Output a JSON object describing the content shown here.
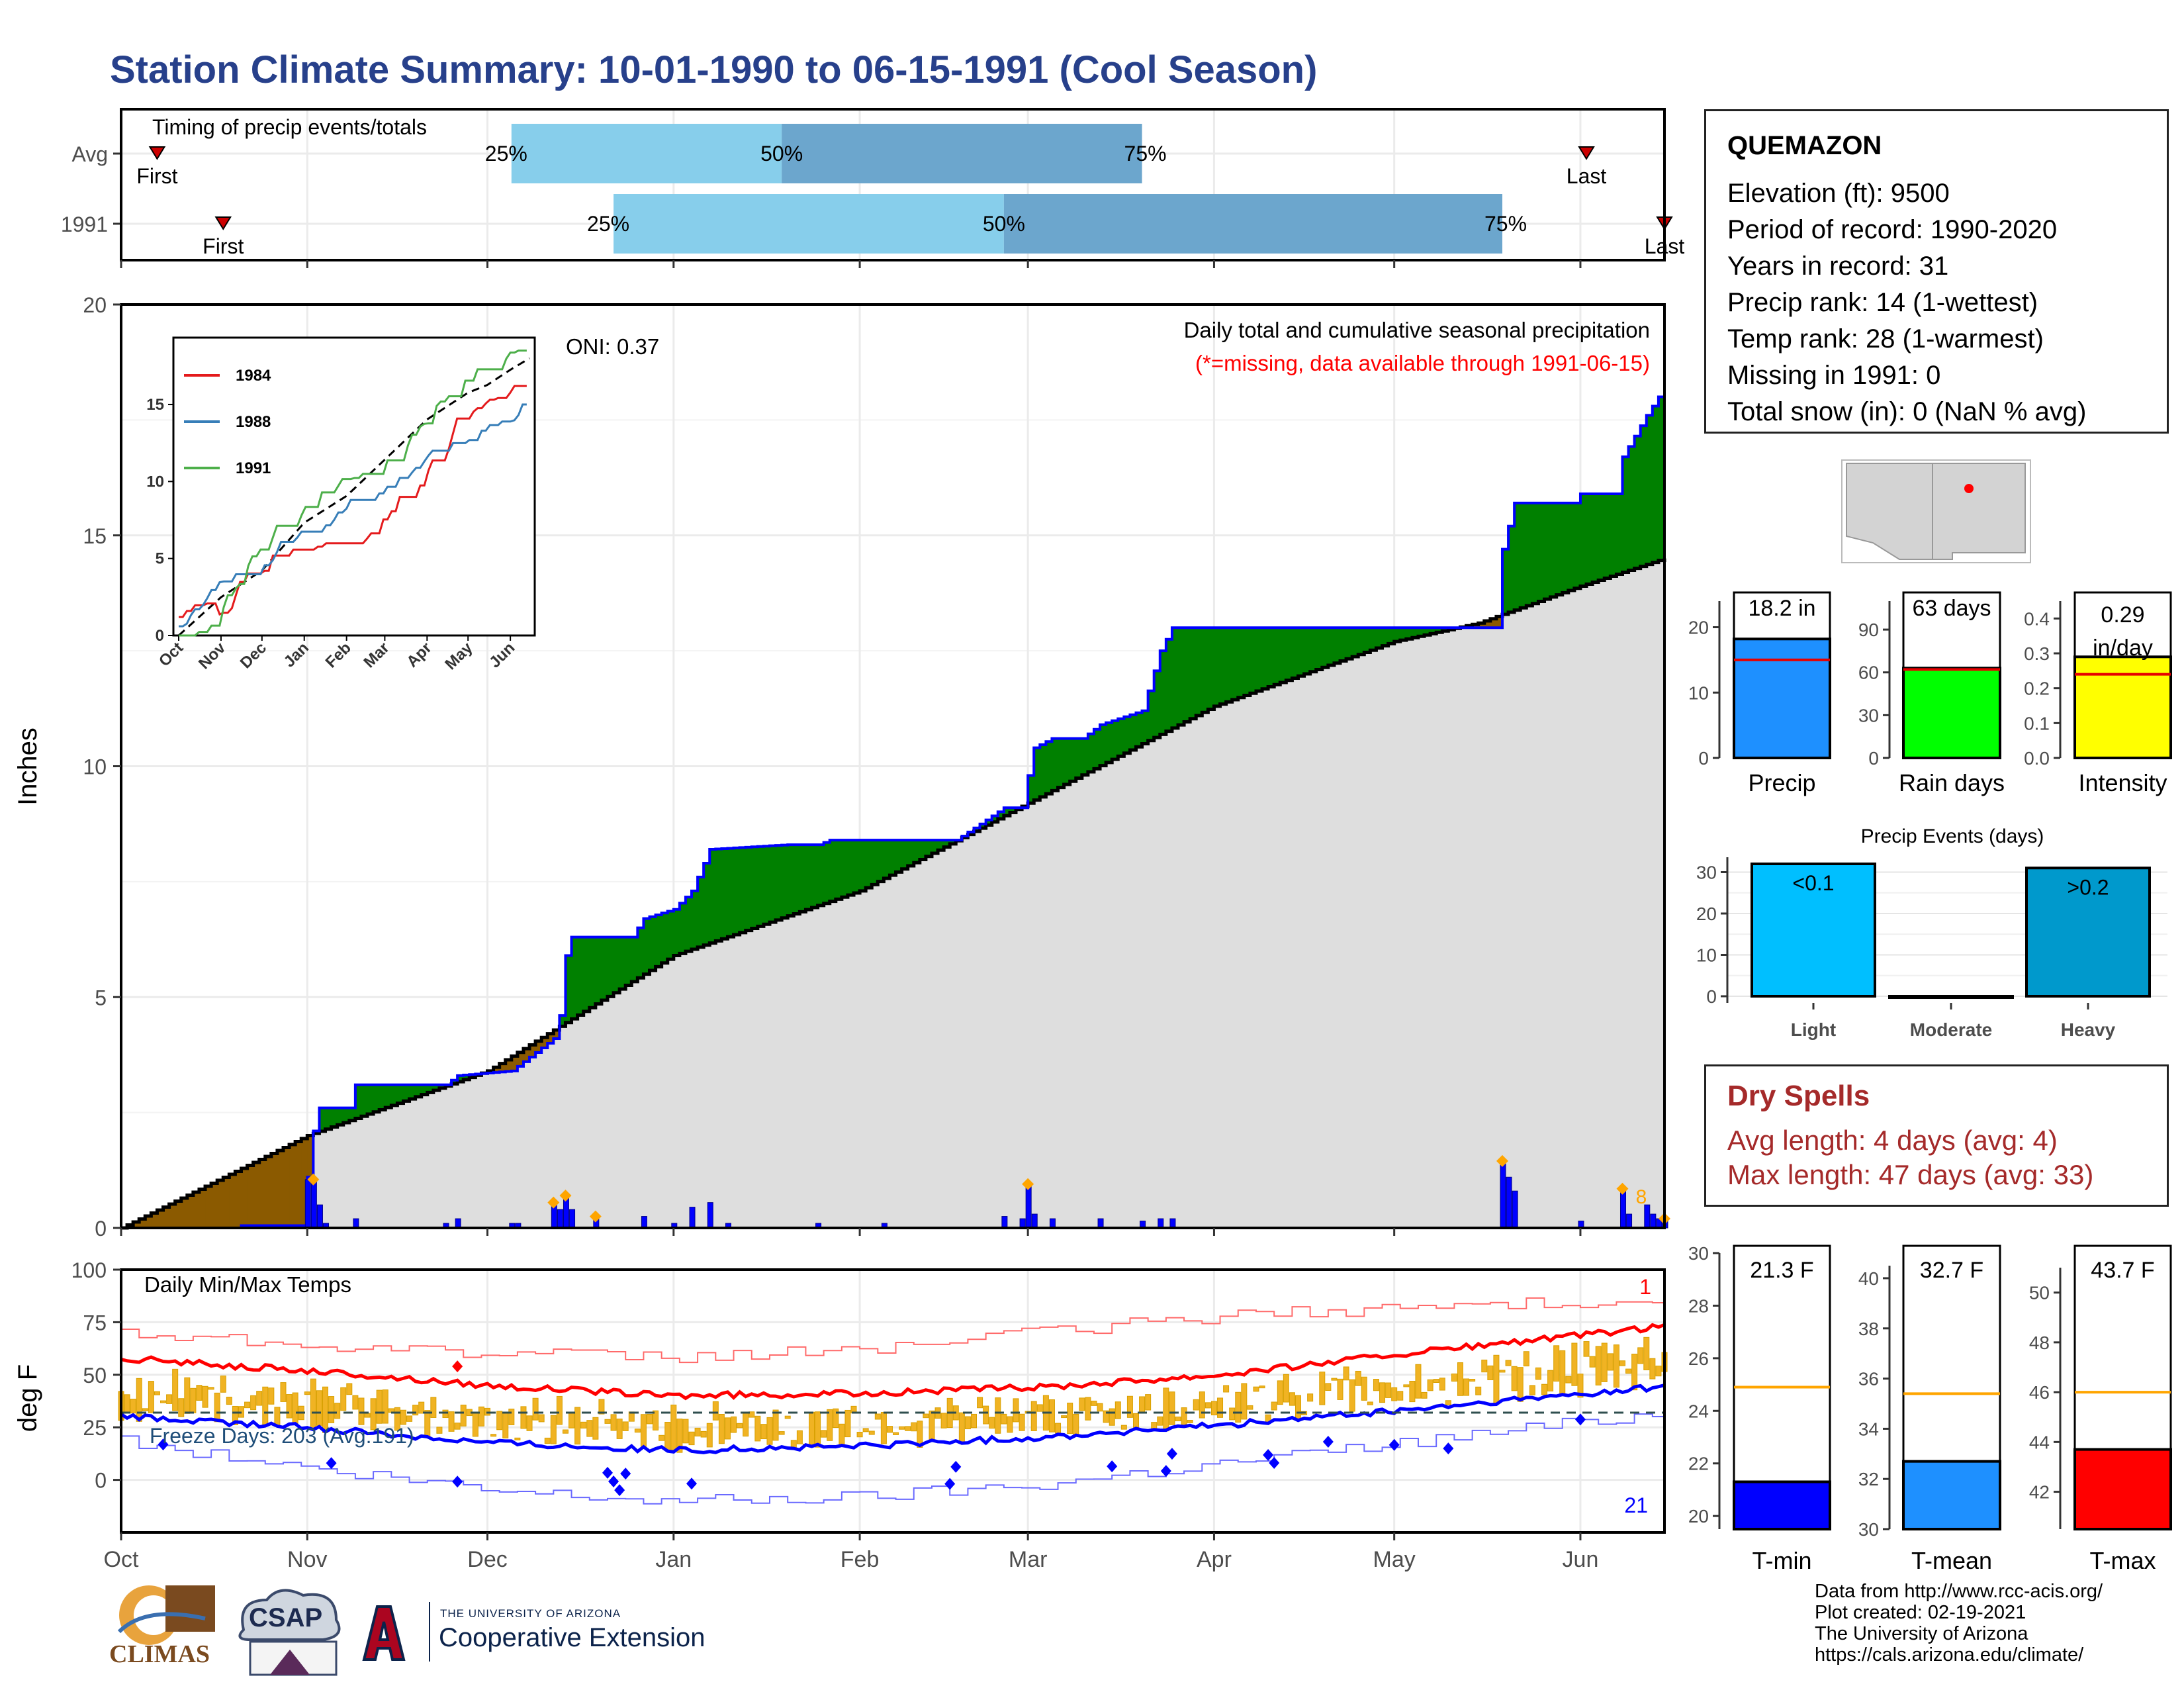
{
  "title": "Station Climate Summary: 10-01-1990 to 06-15-1991 (Cool Season)",
  "info": {
    "station": "QUEMAZON",
    "lines": [
      "Elevation (ft): 9500",
      "Period of record: 1990-2020",
      "Years in record: 31",
      "Precip rank: 14 (1-wettest)",
      "Temp rank: 28 (1-warmest)",
      "Missing in 1991: 0",
      "Total snow (in): 0 (NaN % avg)"
    ]
  },
  "dry_spells": {
    "title": "Dry Spells",
    "avg_length": "Avg length: 4 days (avg: 4)",
    "max_length": "Max length: 47 days (avg: 33)"
  },
  "credits": [
    "Data from http://www.rcc-acis.org/",
    "Plot created: 02-19-2021",
    "The University of Arizona",
    "https://cals.arizona.edu/climate/"
  ],
  "logos": {
    "climas": "CLIMAS",
    "csap": "CSAP",
    "ua_small": "THE UNIVERSITY OF ARIZONA",
    "ua_big": "Cooperative Extension"
  },
  "colors": {
    "title": "#27408b",
    "green": "#008000",
    "brown": "#8b5a00",
    "blue_line": "#0000ff",
    "orange": "#ffa500",
    "dry_spell": "#a52a2a",
    "tmax": "#ff0000",
    "tmin": "#0000ff",
    "tmean": "#1e90ff",
    "precip": "#1e90ff",
    "rain_days": "#00ff00",
    "intensity": "#ffff00",
    "light": "#00bfff",
    "heavy": "#0099cc",
    "timing_light": "#87ceeb",
    "timing_dark": "#6ca6cd"
  },
  "chart_data": [
    {
      "type": "bar",
      "id": "timing",
      "title": "Timing of precip events/totals",
      "categories": [
        "Avg",
        "1991"
      ],
      "rows": [
        {
          "label": "Avg",
          "first": "First",
          "last": "Last",
          "first_date": "1990-10-07",
          "p25": "1990-12-05",
          "p50": "1991-01-19",
          "p75": "1991-03-20",
          "last_date": "1991-06-02"
        },
        {
          "label": "1991",
          "first": "First",
          "last": "Last",
          "first_date": "1990-10-18",
          "p25": "1990-12-22",
          "p50": "1991-02-25",
          "p75": "1991-05-19",
          "last_date": "1991-06-15"
        }
      ],
      "pct_labels": [
        "25%",
        "50%",
        "75%"
      ]
    },
    {
      "type": "area",
      "id": "precip-main",
      "title": "Daily total and cumulative seasonal precipitation",
      "subtitle": "(*=missing, data available through 1991-06-15)",
      "annotation": "ONI: 0.37",
      "ylabel": "Inches",
      "ylim": [
        0,
        20
      ],
      "yticks": [
        0,
        5,
        10,
        15,
        20
      ],
      "x_start": "1990-10-01",
      "x_end": "1991-06-15",
      "month_labels": [
        "Oct",
        "Nov",
        "Dec",
        "Jan",
        "Feb",
        "Mar",
        "Apr",
        "May",
        "Jun"
      ],
      "end_label": "8",
      "obs_cumulative": [
        [
          "1990-10-01",
          0
        ],
        [
          "1990-10-20",
          0
        ],
        [
          "1990-10-21",
          0.05
        ],
        [
          "1990-10-31",
          0.05
        ],
        [
          "1990-11-01",
          1.1
        ],
        [
          "1990-11-02",
          2.1
        ],
        [
          "1990-11-03",
          2.6
        ],
        [
          "1990-11-08",
          2.6
        ],
        [
          "1990-11-09",
          3.1
        ],
        [
          "1990-11-24",
          3.1
        ],
        [
          "1990-11-26",
          3.3
        ],
        [
          "1990-12-05",
          3.4
        ],
        [
          "1990-12-06",
          3.5
        ],
        [
          "1990-12-12",
          4.1
        ],
        [
          "1990-12-13",
          4.6
        ],
        [
          "1990-12-14",
          5.9
        ],
        [
          "1990-12-15",
          6.3
        ],
        [
          "1990-12-25",
          6.3
        ],
        [
          "1990-12-27",
          6.7
        ],
        [
          "1991-01-01",
          6.9
        ],
        [
          "1991-01-04",
          7.3
        ],
        [
          "1991-01-07",
          8.2
        ],
        [
          "1991-01-20",
          8.3
        ],
        [
          "1991-01-25",
          8.3
        ],
        [
          "1991-01-27",
          8.4
        ],
        [
          "1991-02-17",
          8.4
        ],
        [
          "1991-02-25",
          9.1
        ],
        [
          "1991-02-28",
          9.1
        ],
        [
          "1991-03-01",
          9.8
        ],
        [
          "1991-03-02",
          10.4
        ],
        [
          "1991-03-05",
          10.6
        ],
        [
          "1991-03-10",
          10.6
        ],
        [
          "1991-03-13",
          10.9
        ],
        [
          "1991-03-20",
          11.2
        ],
        [
          "1991-03-23",
          12.5
        ],
        [
          "1991-03-25",
          13.0
        ],
        [
          "1991-05-18",
          13.0
        ],
        [
          "1991-05-19",
          14.7
        ],
        [
          "1991-05-21",
          15.7
        ],
        [
          "1991-05-31",
          15.7
        ],
        [
          "1991-06-01",
          15.9
        ],
        [
          "1991-06-07",
          15.9
        ],
        [
          "1991-06-08",
          16.7
        ],
        [
          "1991-06-12",
          17.6
        ],
        [
          "1991-06-14",
          18.0
        ],
        [
          "1991-06-15",
          18.2
        ]
      ],
      "avg_cumulative": [
        [
          "1990-10-01",
          0
        ],
        [
          "1990-11-01",
          2.0
        ],
        [
          "1990-12-01",
          3.4
        ],
        [
          "1991-01-01",
          5.9
        ],
        [
          "1991-02-01",
          7.3
        ],
        [
          "1991-03-01",
          9.2
        ],
        [
          "1991-04-01",
          11.3
        ],
        [
          "1991-05-01",
          12.7
        ],
        [
          "1991-05-15",
          13.1
        ],
        [
          "1991-06-01",
          13.9
        ],
        [
          "1991-06-15",
          14.5
        ]
      ],
      "daily": [
        [
          "1990-11-01",
          1.05
        ],
        [
          "1990-11-02",
          1.0
        ],
        [
          "1990-11-03",
          0.5
        ],
        [
          "1990-11-04",
          0.1
        ],
        [
          "1990-11-09",
          0.2
        ],
        [
          "1990-11-24",
          0.1
        ],
        [
          "1990-11-26",
          0.2
        ],
        [
          "1990-12-05",
          0.1
        ],
        [
          "1990-12-06",
          0.1
        ],
        [
          "1990-12-12",
          0.5
        ],
        [
          "1990-12-13",
          0.4
        ],
        [
          "1990-12-14",
          0.65
        ],
        [
          "1990-12-15",
          0.4
        ],
        [
          "1990-12-19",
          0.2
        ],
        [
          "1990-12-27",
          0.25
        ],
        [
          "1991-01-01",
          0.1
        ],
        [
          "1991-01-04",
          0.45
        ],
        [
          "1991-01-07",
          0.55
        ],
        [
          "1991-01-10",
          0.1
        ],
        [
          "1991-01-25",
          0.1
        ],
        [
          "1991-02-05",
          0.1
        ],
        [
          "1991-02-25",
          0.25
        ],
        [
          "1991-02-28",
          0.2
        ],
        [
          "1991-03-01",
          0.9
        ],
        [
          "1991-03-02",
          0.3
        ],
        [
          "1991-03-05",
          0.2
        ],
        [
          "1991-03-13",
          0.2
        ],
        [
          "1991-03-20",
          0.15
        ],
        [
          "1991-03-23",
          0.2
        ],
        [
          "1991-03-25",
          0.2
        ],
        [
          "1991-05-19",
          1.4
        ],
        [
          "1991-05-20",
          1.1
        ],
        [
          "1991-05-21",
          0.8
        ],
        [
          "1991-06-01",
          0.15
        ],
        [
          "1991-06-08",
          0.8
        ],
        [
          "1991-06-09",
          0.3
        ],
        [
          "1991-06-12",
          0.5
        ],
        [
          "1991-06-13",
          0.3
        ],
        [
          "1991-06-14",
          0.2
        ],
        [
          "1991-06-15",
          0.15
        ]
      ],
      "markers": [
        "1990-11-02",
        "1990-12-12",
        "1990-12-14",
        "1990-12-19",
        "1991-03-01",
        "1991-05-19",
        "1991-06-08",
        "1991-06-15"
      ]
    },
    {
      "type": "line",
      "id": "inset",
      "series": [
        {
          "name": "1984"
        },
        {
          "name": "1988"
        },
        {
          "name": "1991"
        }
      ],
      "ylim": [
        0,
        19
      ],
      "yticks": [
        0,
        5,
        10,
        15
      ],
      "month_labels": [
        "Oct",
        "Nov",
        "Dec",
        "Jan",
        "Feb",
        "Mar",
        "Apr",
        "May",
        "Jun"
      ]
    },
    {
      "type": "bar",
      "id": "temps",
      "title": "Daily Min/Max Temps",
      "ylabel": "deg F",
      "ylim": [
        -25,
        100
      ],
      "yticks": [
        0,
        25,
        50,
        75,
        100
      ],
      "freeze_days": "Freeze Days: 203 (Avg:191)",
      "corner_top": "1",
      "corner_bottom": "21",
      "month_labels": [
        "Oct",
        "Nov",
        "Dec",
        "Jan",
        "Feb",
        "Mar",
        "Apr",
        "May",
        "Jun"
      ],
      "avg_max": [
        58,
        52,
        45,
        40,
        41,
        44,
        50,
        60,
        69
      ],
      "avg_min": [
        30,
        25,
        18,
        14,
        16,
        20,
        26,
        33,
        41
      ],
      "rec_max": [
        70,
        65,
        60,
        58,
        62,
        70,
        78,
        82,
        85
      ],
      "rec_min": [
        18,
        5,
        -5,
        -10,
        -8,
        -2,
        8,
        18,
        28
      ]
    },
    {
      "type": "bar",
      "id": "precip-total",
      "categories": [
        "Precip"
      ],
      "values": [
        18.2
      ],
      "avg": 15,
      "label": "18.2 in",
      "ylim": [
        0,
        24
      ],
      "yticks": [
        0,
        10,
        20
      ]
    },
    {
      "type": "bar",
      "id": "rain-days",
      "categories": [
        "Rain days"
      ],
      "values": [
        63
      ],
      "avg": 62,
      "label": "63 days",
      "ylim": [
        0,
        110
      ],
      "yticks": [
        0,
        30,
        60,
        90
      ]
    },
    {
      "type": "bar",
      "id": "intensity",
      "categories": [
        "Intensity"
      ],
      "values": [
        0.29
      ],
      "avg": 0.24,
      "label": "0.29",
      "label2": "in/day",
      "ylim": [
        0,
        0.45
      ],
      "yticks": [
        0.0,
        0.1,
        0.2,
        0.3,
        0.4
      ]
    },
    {
      "type": "bar",
      "id": "events",
      "title": "Precip Events (days)",
      "categories": [
        "Light",
        "Moderate",
        "Heavy"
      ],
      "values": [
        32,
        0,
        31
      ],
      "labels": [
        "<0.1",
        "",
        ">0.2"
      ],
      "ylim": [
        0,
        32
      ],
      "yticks": [
        0,
        10,
        20,
        30
      ]
    },
    {
      "type": "bar",
      "id": "tmin",
      "categories": [
        "T-min"
      ],
      "values": [
        21.3
      ],
      "avg": 24.9,
      "label": "21.3 F",
      "ylim": [
        19.5,
        30
      ],
      "yticks": [
        20,
        22,
        24,
        26,
        28,
        30
      ]
    },
    {
      "type": "bar",
      "id": "tmean",
      "categories": [
        "T-mean"
      ],
      "values": [
        32.7
      ],
      "avg": 35.4,
      "label": "32.7 F",
      "ylim": [
        30,
        40.5
      ],
      "yticks": [
        30,
        32,
        34,
        36,
        38,
        40
      ]
    },
    {
      "type": "bar",
      "id": "tmax",
      "categories": [
        "T-max"
      ],
      "values": [
        43.7
      ],
      "avg": 46.0,
      "label": "43.7 F",
      "ylim": [
        40.5,
        51
      ],
      "yticks": [
        42,
        44,
        46,
        48,
        50
      ]
    }
  ]
}
